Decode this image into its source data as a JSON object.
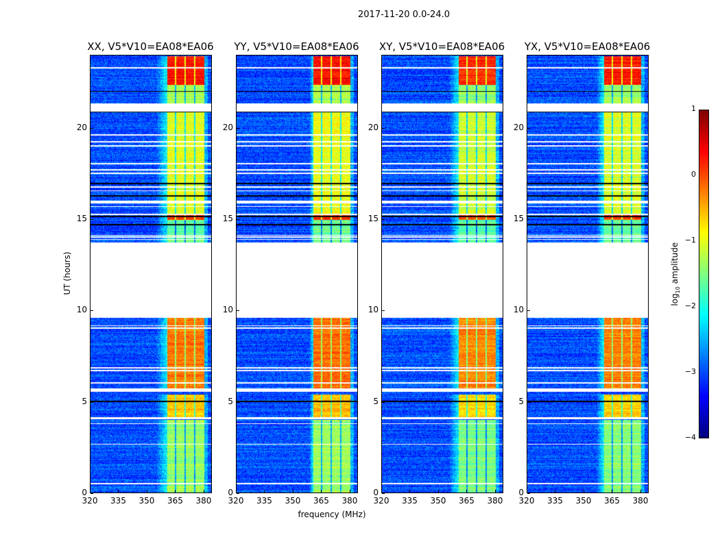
{
  "suptitle": "2017-11-20 0.0-24.0",
  "xlabel": "frequency (MHz)",
  "ylabel": "UT (hours)",
  "colorbar": {
    "label_main": "log",
    "label_sub": "10",
    "label_rest": " amplitude",
    "min": -4,
    "max": 1,
    "ticks": [
      "1",
      "0",
      "−1",
      "−2",
      "−3",
      "−4"
    ],
    "tick_values": [
      1,
      0,
      -1,
      -2,
      -3,
      -4
    ],
    "colormap": "jet"
  },
  "chart_data": {
    "type": "heatmap",
    "title": "2017-11-20 0.0-24.0",
    "xlabel": "frequency (MHz)",
    "ylabel": "UT (hours)",
    "xlim": [
      320,
      384
    ],
    "ylim": [
      0,
      24
    ],
    "x_ticks": [
      "320",
      "335",
      "350",
      "365",
      "380"
    ],
    "x_tick_values": [
      320,
      335,
      350,
      365,
      380
    ],
    "y_ticks": [
      "0",
      "5",
      "10",
      "15",
      "20"
    ],
    "y_tick_values": [
      0,
      5,
      10,
      15,
      20
    ],
    "colorbar_range": [
      -4,
      1
    ],
    "background_log_amplitude": -3.0,
    "bright_band_mhz": [
      360.5,
      380
    ],
    "subband_gaps_mhz": [
      365,
      370,
      375
    ],
    "data_gaps_hours": [
      [
        9.6,
        13.75
      ],
      [
        20.95,
        21.4
      ],
      [
        5.55,
        5.72
      ],
      [
        4.05,
        4.15
      ],
      [
        14.0,
        14.1
      ],
      [
        15.25,
        15.32
      ]
    ],
    "band_log_amplitude_by_time": [
      {
        "from": 0,
        "to": 4.0,
        "value": -1.4
      },
      {
        "from": 4.15,
        "to": 5.4,
        "value": -0.6
      },
      {
        "from": 5.72,
        "to": 9.6,
        "value": -0.2
      },
      {
        "from": 13.75,
        "to": 15.0,
        "value": -1.6
      },
      {
        "from": 15.0,
        "to": 15.25,
        "value": 0.1
      },
      {
        "from": 15.32,
        "to": 20.95,
        "value": -1.0
      },
      {
        "from": 21.4,
        "to": 22.4,
        "value": -1.3
      },
      {
        "from": 22.4,
        "to": 24.0,
        "value": 0.3
      }
    ],
    "panels": [
      {
        "title": "XX, V5*V10=EA08*EA06",
        "band_start_mhz": 360.5,
        "ramp_mhz": 6,
        "gain": 0.0
      },
      {
        "title": "YY, V5*V10=EA08*EA06",
        "band_start_mhz": 360.5,
        "ramp_mhz": 2,
        "gain": 0.05
      },
      {
        "title": "XY, V5*V10=EA08*EA06",
        "band_start_mhz": 360.5,
        "ramp_mhz": 5,
        "gain": -0.1
      },
      {
        "title": "YX, V5*V10=EA08*EA06",
        "band_start_mhz": 360.5,
        "ramp_mhz": 4,
        "gain": -0.05
      }
    ]
  }
}
